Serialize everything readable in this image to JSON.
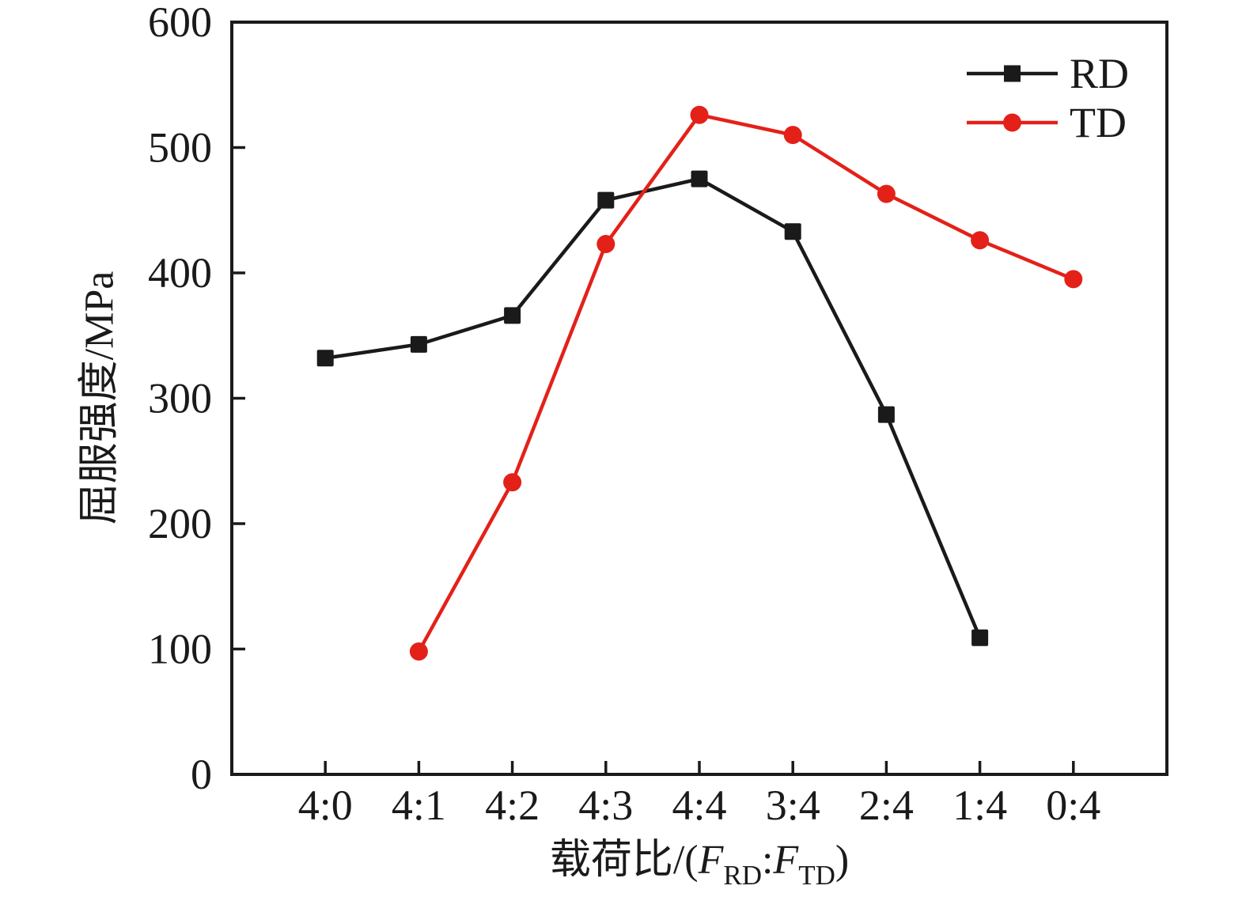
{
  "chart_data": {
    "type": "line",
    "categories": [
      "4:0",
      "4:1",
      "4:2",
      "4:3",
      "4:4",
      "3:4",
      "2:4",
      "1:4",
      "0:4"
    ],
    "series": [
      {
        "name": "RD",
        "color": "#1a1a1a",
        "marker": "square",
        "values": [
          332,
          343,
          366,
          458,
          475,
          433,
          287,
          109,
          null
        ]
      },
      {
        "name": "TD",
        "color": "#e32119",
        "marker": "circle",
        "values": [
          null,
          98,
          233,
          423,
          526,
          510,
          463,
          426,
          395
        ]
      }
    ],
    "title": "",
    "xlabel": "载荷比/(F_RD:F_TD)",
    "ylabel": "屈服强度/MPa",
    "ylim": [
      0,
      600
    ],
    "yticks": [
      0,
      100,
      200,
      300,
      400,
      500,
      600
    ],
    "grid": false,
    "legend_position": "top-right",
    "legend_frame": false
  },
  "axes": {
    "y_title": "屈服强度/MPa",
    "x_title_prefix": "载荷比/(",
    "x_title_F1": "F",
    "x_title_sub1": "RD",
    "x_title_colon": ":",
    "x_title_F2": "F",
    "x_title_sub2": "TD",
    "x_title_suffix": ")"
  },
  "legend": {
    "items": [
      {
        "label": "RD"
      },
      {
        "label": "TD"
      }
    ]
  },
  "colors": {
    "black": "#1a1a1a",
    "red": "#e32119",
    "background": "#ffffff"
  }
}
